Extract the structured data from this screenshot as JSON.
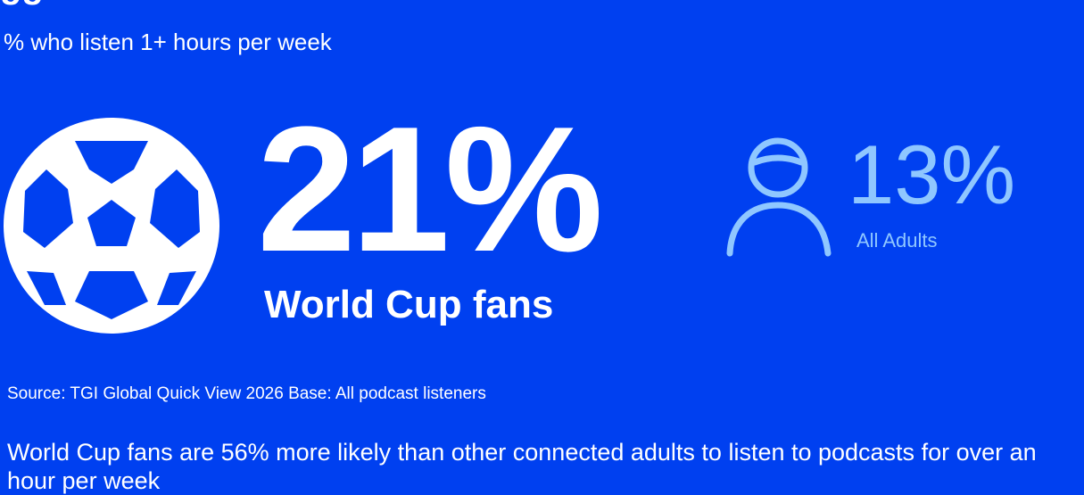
{
  "header": {
    "title_cutoff": "gg",
    "subtitle": "% who listen 1+ hours per week"
  },
  "main_stat": {
    "value": "21%",
    "label": "World Cup fans",
    "icon": "football-icon"
  },
  "comparison_stat": {
    "value": "13%",
    "label": "All Adults",
    "icon": "person-icon",
    "color": "#8FC7FF"
  },
  "footer": {
    "source": "Source: TGI Global Quick View 2026  Base: All podcast listeners",
    "insight": "World Cup fans are 56% more likely than other connected adults to listen to podcasts for over an hour per week"
  },
  "colors": {
    "background": "#0040F0",
    "text": "#FFFFFF",
    "accent": "#8FC7FF"
  }
}
